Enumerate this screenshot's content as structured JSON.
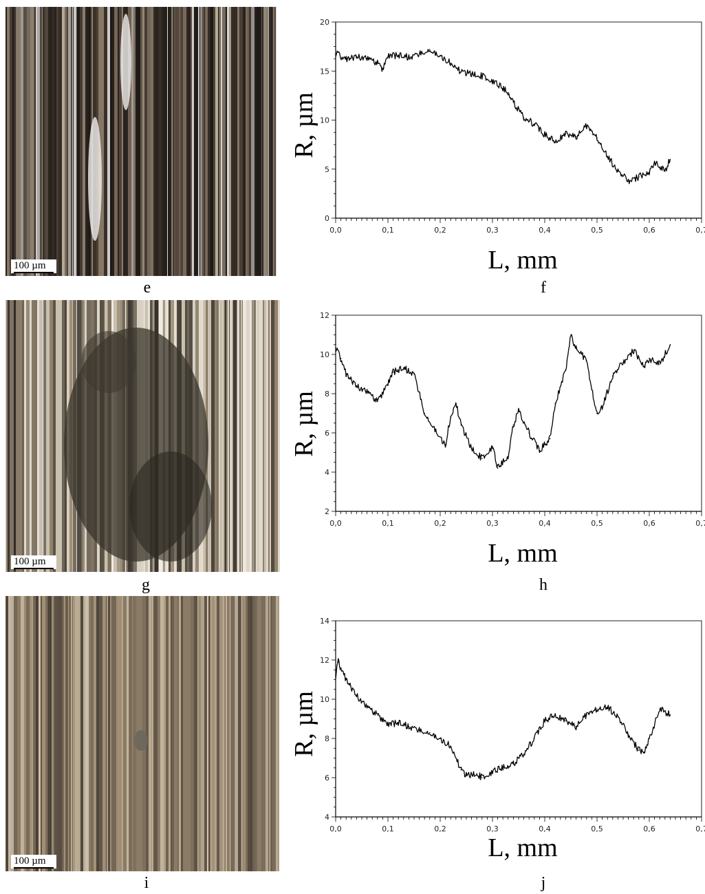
{
  "panels": {
    "e": {
      "caption": "e",
      "scale_label": "100 µm",
      "palette": [
        "#2a231e",
        "#3b322b",
        "#5b4e42",
        "#e9e7e4",
        "#8a7a68",
        "#1d1a17",
        "#b8aa96"
      ]
    },
    "g": {
      "caption": "g",
      "scale_label": "100 µm",
      "palette": [
        "#c9bfae",
        "#e2dbce",
        "#4a4338",
        "#2f2b25",
        "#8c7c62",
        "#f0ece4",
        "#6a5d4a"
      ]
    },
    "i": {
      "caption": "i",
      "scale_label": "100 µm",
      "palette": [
        "#8a7b66",
        "#a8967c",
        "#5e5244",
        "#c2b39a",
        "#746656",
        "#d6cab4",
        "#4a4036"
      ]
    }
  },
  "chart_data": [
    {
      "id": "f",
      "caption": "f",
      "type": "line",
      "xlabel": "L, mm",
      "ylabel": "R, µm",
      "xlim": [
        0,
        0.7
      ],
      "ylim": [
        0,
        20
      ],
      "xticks": [
        "0,0",
        "0,1",
        "0,2",
        "0,3",
        "0,4",
        "0,5",
        "0,6",
        "0,7"
      ],
      "yticks": [
        "0",
        "5",
        "10",
        "15",
        "20"
      ],
      "x_end": 0.64,
      "line_color": "#000000",
      "series": [
        {
          "x": [
            0,
            0.02,
            0.04,
            0.06,
            0.08,
            0.09,
            0.1,
            0.12,
            0.14,
            0.16,
            0.18,
            0.2,
            0.22,
            0.24,
            0.26,
            0.28,
            0.3,
            0.32,
            0.33,
            0.34,
            0.36,
            0.38,
            0.4,
            0.42,
            0.44,
            0.46,
            0.48,
            0.5,
            0.52,
            0.54,
            0.56,
            0.58,
            0.6,
            0.61,
            0.62,
            0.63,
            0.64
          ],
          "y": [
            16.8,
            16.2,
            16.5,
            16.3,
            15.8,
            15.2,
            16.5,
            16.6,
            16.4,
            16.7,
            17.2,
            16.6,
            15.8,
            14.9,
            14.7,
            14.5,
            14.0,
            13.2,
            12.8,
            11.8,
            10.2,
            9.6,
            8.5,
            7.8,
            8.6,
            8.3,
            9.4,
            8.2,
            6.3,
            4.8,
            3.8,
            4.2,
            4.7,
            5.8,
            5.2,
            4.8,
            6.0
          ]
        }
      ]
    },
    {
      "id": "h",
      "caption": "h",
      "type": "line",
      "xlabel": "L, mm",
      "ylabel": "R, µm",
      "xlim": [
        0,
        0.7
      ],
      "ylim": [
        2,
        12
      ],
      "xticks": [
        "0,0",
        "0,1",
        "0,2",
        "0,3",
        "0,4",
        "0,5",
        "0,6",
        "0,7"
      ],
      "yticks": [
        "2",
        "4",
        "6",
        "8",
        "10",
        "12"
      ],
      "x_end": 0.64,
      "line_color": "#000000",
      "series": [
        {
          "x": [
            0,
            0.01,
            0.02,
            0.04,
            0.06,
            0.08,
            0.1,
            0.11,
            0.13,
            0.15,
            0.17,
            0.19,
            0.21,
            0.22,
            0.23,
            0.24,
            0.26,
            0.28,
            0.3,
            0.31,
            0.33,
            0.34,
            0.35,
            0.37,
            0.39,
            0.41,
            0.42,
            0.44,
            0.45,
            0.46,
            0.48,
            0.49,
            0.5,
            0.51,
            0.53,
            0.55,
            0.57,
            0.59,
            0.6,
            0.62,
            0.64
          ],
          "y": [
            10.3,
            9.8,
            9.0,
            8.4,
            8.1,
            7.6,
            8.5,
            9.1,
            9.3,
            9.0,
            7.0,
            6.2,
            5.4,
            6.8,
            7.5,
            6.4,
            5.2,
            4.7,
            5.3,
            4.2,
            4.8,
            6.4,
            7.1,
            6.0,
            5.1,
            5.7,
            7.5,
            9.2,
            11.0,
            10.3,
            9.7,
            8.2,
            7.0,
            7.3,
            8.9,
            9.6,
            10.2,
            9.4,
            9.8,
            9.5,
            10.5
          ]
        }
      ]
    },
    {
      "id": "j",
      "caption": "j",
      "type": "line",
      "xlabel": "L, mm",
      "ylabel": "R, µm",
      "xlim": [
        0,
        0.7
      ],
      "ylim": [
        4,
        14
      ],
      "xticks": [
        "0,0",
        "0,1",
        "0,2",
        "0,3",
        "0,4",
        "0,5",
        "0,6",
        "0,7"
      ],
      "yticks": [
        "4",
        "6",
        "8",
        "10",
        "12",
        "14"
      ],
      "x_end": 0.64,
      "line_color": "#000000",
      "series": [
        {
          "x": [
            0,
            0.005,
            0.01,
            0.02,
            0.04,
            0.06,
            0.08,
            0.1,
            0.12,
            0.14,
            0.16,
            0.18,
            0.2,
            0.22,
            0.24,
            0.25,
            0.27,
            0.28,
            0.3,
            0.32,
            0.34,
            0.36,
            0.38,
            0.4,
            0.42,
            0.44,
            0.46,
            0.48,
            0.5,
            0.52,
            0.54,
            0.56,
            0.58,
            0.59,
            0.6,
            0.62,
            0.64
          ],
          "y": [
            11.2,
            11.9,
            11.6,
            11.0,
            10.2,
            9.6,
            9.2,
            8.7,
            8.8,
            8.6,
            8.4,
            8.3,
            8.0,
            7.6,
            6.4,
            6.1,
            6.2,
            6.0,
            6.3,
            6.5,
            6.7,
            7.2,
            8.0,
            8.9,
            9.2,
            8.9,
            8.6,
            9.2,
            9.5,
            9.6,
            9.1,
            8.2,
            7.4,
            7.3,
            8.0,
            9.5,
            9.2
          ]
        }
      ]
    }
  ]
}
